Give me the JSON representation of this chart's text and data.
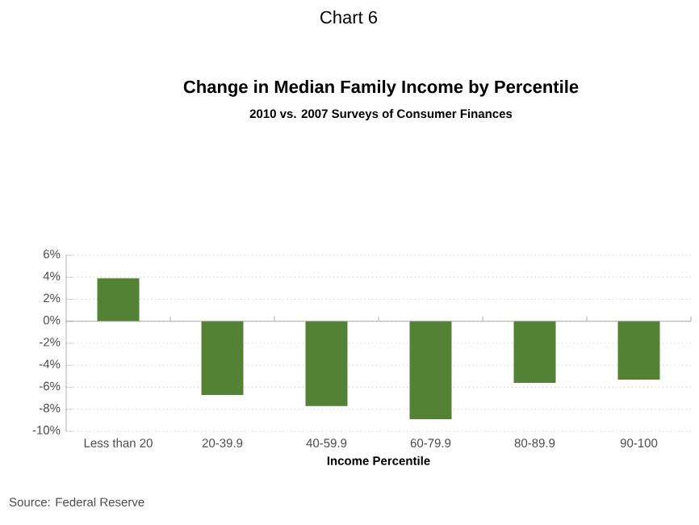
{
  "chart_data": {
    "type": "bar",
    "title": "Change in Median Family Income by Percentile",
    "subtitle": "2010 vs. 2007 Surveys of Consumer Finances",
    "annotations": [
      "Chart 6",
      "Source: Federal Reserve"
    ],
    "xlabel": "Income Percentile",
    "categories": [
      "Less than 20",
      "20-39.9",
      "40-59.9",
      "60-79.9",
      "80-89.9",
      "90-100"
    ],
    "values": [
      3.9,
      -6.7,
      -7.7,
      -8.9,
      -5.6,
      -5.3
    ],
    "color": "#548235",
    "ylim": [
      -10,
      6
    ],
    "yticks": [
      {
        "value": -10,
        "label": "-10%"
      },
      {
        "value": -8,
        "label": "-8%"
      },
      {
        "value": -6,
        "label": "-6%"
      },
      {
        "value": -4,
        "label": "-4%"
      },
      {
        "value": -2,
        "label": "-2%"
      },
      {
        "value": 0,
        "label": "0%"
      },
      {
        "value": 2,
        "label": "2%"
      },
      {
        "value": 4,
        "label": "4%"
      },
      {
        "value": 6,
        "label": "6%"
      }
    ],
    "grid": "y"
  }
}
